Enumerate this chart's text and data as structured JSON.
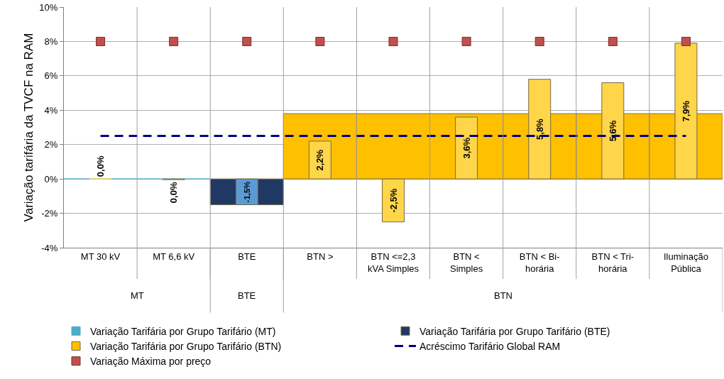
{
  "chart_data": {
    "type": "bar",
    "ylabel": "Variação tarifária da TVCF na RAM",
    "categories": [
      "MT 30 kV",
      "MT 6,6 kV",
      "BTE",
      "BTN >",
      "BTN <=2,3 kVA Simples",
      "BTN < Simples",
      "BTN < Bi-horária",
      "BTN < Tri-horária",
      "Iluminação Pública"
    ],
    "series": [
      {
        "name": "Variação Tarifária por Grupo Tarifário (MT)",
        "color": "#4bacc6",
        "values": [
          0,
          0,
          null,
          null,
          null,
          null,
          null,
          null,
          null
        ]
      },
      {
        "name": "Variação Tarifária por Grupo Tarifário (BTE)",
        "color": "#1f3864",
        "values": [
          null,
          null,
          -1.5,
          null,
          null,
          null,
          null,
          null,
          null
        ]
      },
      {
        "name": "Variação Tarifária por Grupo Tarifário (BTN)",
        "color": "#ffc000",
        "values": [
          null,
          null,
          null,
          3.8,
          3.8,
          3.8,
          3.8,
          3.8,
          3.8
        ]
      },
      {
        "colors": [
          "#ffd54a",
          "#ffd54a",
          "#5b9bd5",
          "#ffd54a",
          "#ffd54a",
          "#ffd54a",
          "#ffd54a",
          "#ffd54a",
          "#ffd54a"
        ],
        "values": [
          0,
          -0.04,
          -1.5,
          2.2,
          -2.5,
          3.6,
          5.8,
          5.6,
          7.9
        ],
        "value_labels": [
          "0,0%",
          "0,0%",
          "-1,5%",
          "2,2%",
          "-2,5%",
          "3,6%",
          "5,8%",
          "5,6%",
          "7,9%"
        ]
      },
      {
        "name": "Acréscimo Tarifário Global RAM",
        "type": "line",
        "color": "#000080",
        "line_style": "dashed",
        "marker": "none",
        "values": [
          2.5,
          2.5,
          2.5,
          2.5,
          2.5,
          2.5,
          2.5,
          2.5,
          2.5
        ]
      },
      {
        "name": "Variação Máxima por preço",
        "type": "scatter",
        "color": "#c0504d",
        "marker": "square",
        "values": [
          8,
          8,
          8,
          8,
          8,
          8,
          8,
          8,
          8
        ]
      }
    ],
    "annotations": [
      "MT",
      "BTE",
      "BTN"
    ],
    "ylim": [
      -4,
      10
    ],
    "yticks": [
      {
        "value": -4,
        "label": "-4%"
      },
      {
        "value": -2,
        "label": "-2%"
      },
      {
        "value": 0,
        "label": "0%"
      },
      {
        "value": 2,
        "label": "2%"
      },
      {
        "value": 4,
        "label": "4%"
      },
      {
        "value": 6,
        "label": "6%"
      },
      {
        "value": 8,
        "label": "8%"
      },
      {
        "value": 10,
        "label": "10%"
      }
    ],
    "grid": "y",
    "legend": "bottom"
  }
}
